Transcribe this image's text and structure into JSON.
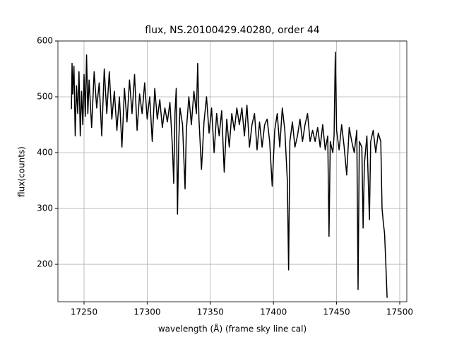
{
  "chart_data": {
    "type": "line",
    "title": "flux, NS.20100429.40280, order 44",
    "x_label": "wavelength (Å) (frame sky line cal)",
    "y_label": "flux(counts)",
    "x": [
      17240,
      17240.5,
      17241,
      17242,
      17243,
      17244,
      17245,
      17246,
      17247,
      17248,
      17249,
      17250,
      17251,
      17252,
      17253,
      17254,
      17256,
      17258,
      17260,
      17262,
      17264,
      17266,
      17268,
      17270,
      17272,
      17274,
      17276,
      17278,
      17280,
      17282,
      17284,
      17286,
      17288,
      17290,
      17292,
      17294,
      17296,
      17298,
      17300,
      17302,
      17304,
      17306,
      17308,
      17310,
      17312,
      17314,
      17316,
      17318,
      17320,
      17321,
      17322,
      17323,
      17324,
      17325,
      17326,
      17328,
      17330,
      17331,
      17333,
      17335,
      17337,
      17339,
      17340,
      17341,
      17343,
      17345,
      17347,
      17349,
      17351,
      17353,
      17355,
      17357,
      17359,
      17361,
      17363,
      17365,
      17367,
      17369,
      17371,
      17373,
      17375,
      17377,
      17379,
      17381,
      17383,
      17385,
      17387,
      17389,
      17391,
      17393,
      17395,
      17397,
      17399,
      17401,
      17403,
      17405,
      17407,
      17409,
      17411,
      17412,
      17413,
      17415,
      17417,
      17419,
      17421,
      17423,
      17425,
      17427,
      17429,
      17431,
      17433,
      17435,
      17437,
      17439,
      17441,
      17443,
      17444,
      17445,
      17447,
      17448,
      17449,
      17450,
      17452,
      17454,
      17456,
      17458,
      17460,
      17462,
      17464,
      17466,
      17467,
      17468,
      17470,
      17471,
      17472,
      17474,
      17476,
      17477,
      17479,
      17481,
      17483,
      17485,
      17486,
      17487,
      17488,
      17489,
      17490
    ],
    "series": [
      {
        "color": "#000000",
        "values": [
          478,
          560,
          505,
          555,
          430,
          520,
          470,
          545,
          430,
          510,
          450,
          540,
          465,
          575,
          470,
          530,
          445,
          545,
          480,
          525,
          430,
          550,
          470,
          545,
          460,
          510,
          440,
          500,
          410,
          515,
          455,
          530,
          470,
          540,
          440,
          505,
          470,
          525,
          460,
          500,
          420,
          515,
          460,
          495,
          445,
          480,
          455,
          490,
          410,
          345,
          470,
          515,
          290,
          420,
          480,
          450,
          335,
          440,
          500,
          450,
          510,
          470,
          560,
          460,
          370,
          455,
          500,
          435,
          480,
          400,
          470,
          430,
          475,
          365,
          460,
          410,
          470,
          440,
          480,
          450,
          480,
          430,
          485,
          410,
          450,
          470,
          405,
          455,
          410,
          450,
          460,
          420,
          340,
          440,
          470,
          410,
          480,
          440,
          350,
          190,
          420,
          455,
          410,
          430,
          460,
          420,
          450,
          470,
          420,
          440,
          420,
          445,
          410,
          450,
          405,
          430,
          250,
          420,
          400,
          430,
          580,
          440,
          405,
          450,
          410,
          360,
          445,
          420,
          400,
          440,
          155,
          420,
          410,
          265,
          380,
          430,
          280,
          420,
          440,
          400,
          435,
          420,
          300,
          275,
          255,
          200,
          140
        ]
      }
    ],
    "xlim": [
      17229.3,
      17505.6
    ],
    "ylim": [
      133,
      600
    ],
    "xticks": [
      17250,
      17300,
      17350,
      17400,
      17450,
      17500
    ],
    "yticks": [
      200,
      300,
      400,
      500,
      600
    ],
    "grid": true
  }
}
